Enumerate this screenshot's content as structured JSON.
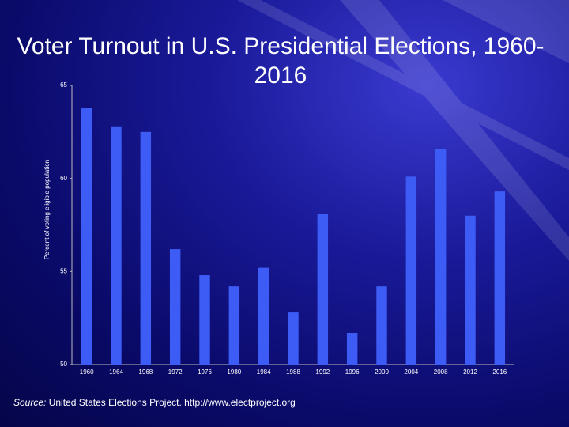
{
  "chart_data": {
    "type": "bar",
    "title": "Voter Turnout in U.S. Presidential Elections, 1960-2016",
    "y_label": "Percent of voting eligible population",
    "source_label": "Source:",
    "source_text": "United States Elections Project. http://www.electproject.org",
    "categories": [
      "1960",
      "1964",
      "1968",
      "1972",
      "1976",
      "1980",
      "1984",
      "1988",
      "1992",
      "1996",
      "2000",
      "2004",
      "2008",
      "2012",
      "2016"
    ],
    "values": [
      63.8,
      62.8,
      62.5,
      56.2,
      54.8,
      54.2,
      55.2,
      52.8,
      58.1,
      51.7,
      54.2,
      60.1,
      61.6,
      58.0,
      59.3
    ],
    "color": "#3d5cf5",
    "ylim": [
      50,
      65
    ],
    "yticks": [
      50,
      55,
      60,
      65
    ]
  }
}
